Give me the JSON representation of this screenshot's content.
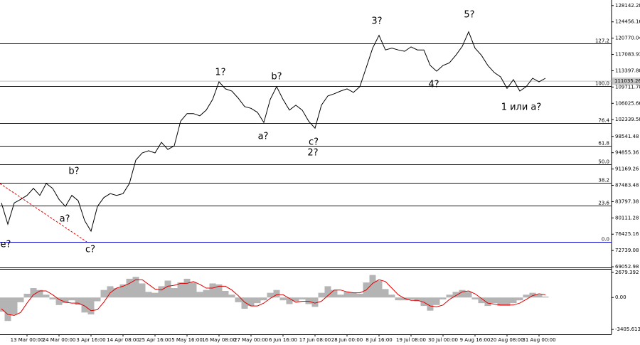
{
  "chart_data": [
    {
      "type": "line",
      "color": "#000000",
      "categories": [
        null,
        null,
        null,
        null,
        "13 Mar 00:00",
        null,
        null,
        null,
        null,
        "24 Mar 00:00",
        null,
        null,
        null,
        null,
        "3 Apr 16:00",
        null,
        null,
        null,
        null,
        "14 Apr 08:00",
        null,
        null,
        null,
        null,
        "25 Apr 16:00",
        null,
        null,
        null,
        null,
        "5 May 16:00",
        null,
        null,
        null,
        null,
        "16 May 08:00",
        null,
        null,
        null,
        null,
        "27 May 00:00",
        null,
        null,
        null,
        null,
        "6 Jun 16:00",
        null,
        null,
        null,
        null,
        "17 Jun 08:00",
        null,
        null,
        null,
        null,
        "28 Jun 00:00",
        null,
        null,
        null,
        null,
        "8 Jul 16:00",
        null,
        null,
        null,
        null,
        "19 Jul 08:00",
        null,
        null,
        null,
        null,
        "30 Jul 00:00",
        null,
        null,
        null,
        null,
        "9 Aug 16:00",
        null,
        null,
        null,
        null,
        "20 Aug 08:00",
        null,
        null,
        null,
        null,
        "31 Aug 00:00",
        null
      ],
      "values": [
        83500,
        78700,
        83500,
        84300,
        85200,
        86800,
        85200,
        87900,
        86800,
        84300,
        82700,
        85200,
        84000,
        79500,
        77100,
        82700,
        84700,
        85600,
        85200,
        85600,
        87900,
        93200,
        94800,
        95300,
        94800,
        97200,
        95600,
        96400,
        102000,
        103700,
        103700,
        103200,
        104500,
        106900,
        110900,
        109300,
        108800,
        107200,
        105300,
        104900,
        104000,
        101700,
        106900,
        109800,
        106900,
        104500,
        105600,
        104500,
        102000,
        100400,
        105600,
        107700,
        108200,
        108800,
        109300,
        108500,
        109800,
        114100,
        118500,
        121400,
        118100,
        118500,
        118100,
        117800,
        118800,
        118100,
        118100,
        114600,
        113300,
        114600,
        115200,
        116900,
        118900,
        122200,
        118500,
        116900,
        114600,
        113000,
        112000,
        109400,
        111400,
        108800,
        109800,
        111700,
        110900,
        111700
      ],
      "ylim": [
        68900,
        129400
      ],
      "yticks": [
        128142.28,
        124456.16,
        120770.04,
        117083.93,
        {
          "value": 113397.8,
          "label": "113397.80"
        },
        109711.78,
        106025.66,
        102339.58,
        98541.48,
        94855.36,
        91169.26,
        87483.48,
        83797.38,
        80111.28,
        76425.16,
        72739.08,
        69052.98
      ],
      "last_price": 111035.26,
      "levels": [
        {
          "label": "127.2",
          "value": 119585
        },
        {
          "label": "100.0",
          "value": 109931
        },
        {
          "label": "76.4",
          "value": 101565
        },
        {
          "label": "61.8",
          "value": 96415
        },
        {
          "label": "50.0",
          "value": 92232
        },
        {
          "label": "38.2",
          "value": 88048
        },
        {
          "label": "23.6",
          "value": 82898
        },
        {
          "label": "0.0",
          "value": 74694
        }
      ],
      "level_color": "#0000c8",
      "annotations": [
        {
          "text": "e?",
          "color": "#1515c8"
        },
        {
          "text": "a?",
          "color": "#1515c8"
        },
        {
          "text": "b?",
          "color": "#1515c8"
        },
        {
          "text": "c?",
          "color": "#1515c8"
        },
        {
          "text": "1?",
          "color": "#1515c8"
        },
        {
          "text": "a?",
          "color": "#c00000"
        },
        {
          "text": "b?",
          "color": "#c00000"
        },
        {
          "text": "c?",
          "color": "#c00000"
        },
        {
          "text": "2?",
          "color": "#1515c8"
        },
        {
          "text": "3?",
          "color": "#1515c8"
        },
        {
          "text": "4?",
          "color": "#1515c8"
        },
        {
          "text": "5?",
          "color": "#1515c8"
        },
        {
          "text": "1 или a?",
          "color": "#1515c8"
        }
      ]
    },
    {
      "type": "macd",
      "ylim": [
        -3925,
        3050
      ],
      "yticks": [
        2679.392,
        {
          "value": 0,
          "label": "0.00"
        },
        -3405.613
      ],
      "series": [
        {
          "type": "bar",
          "color": "#b4b4b4",
          "values": [
            -1500,
            -2500,
            -1800,
            -500,
            400,
            1000,
            800,
            300,
            -200,
            -800,
            -600,
            -300,
            -800,
            -1600,
            -1800,
            -400,
            800,
            1200,
            1000,
            1400,
            2000,
            2200,
            1500,
            600,
            500,
            1200,
            1800,
            1000,
            1600,
            2000,
            1600,
            600,
            800,
            1500,
            1400,
            700,
            300,
            -500,
            -1200,
            -900,
            -600,
            -300,
            500,
            800,
            -300,
            -700,
            -400,
            -200,
            -700,
            -1000,
            500,
            1200,
            800,
            300,
            600,
            500,
            400,
            1600,
            2400,
            1800,
            900,
            300,
            -300,
            -300,
            -200,
            -400,
            -900,
            -1400,
            -800,
            -200,
            300,
            600,
            800,
            600,
            -200,
            -600,
            -900,
            -600,
            -900,
            -900,
            -600,
            -300,
            300,
            500,
            300,
            100
          ]
        },
        {
          "type": "line",
          "color": "#e00000",
          "values": [
            -1200,
            -1800,
            -1900,
            -1600,
            -600,
            300,
            700,
            700,
            300,
            -200,
            -500,
            -600,
            -600,
            -900,
            -1400,
            -1300,
            -500,
            500,
            1000,
            1200,
            1500,
            1900,
            1900,
            1400,
            900,
            800,
            1200,
            1300,
            1500,
            1500,
            1700,
            1400,
            1000,
            1000,
            1200,
            1200,
            800,
            200,
            -500,
            -900,
            -900,
            -600,
            -100,
            300,
            300,
            -100,
            -500,
            -400,
            -400,
            -600,
            -400,
            200,
            800,
            800,
            600,
            500,
            500,
            800,
            1500,
            1900,
            1700,
            1000,
            300,
            -100,
            -300,
            -300,
            -500,
            -900,
            -1000,
            -800,
            -200,
            200,
            600,
            700,
            400,
            -100,
            -600,
            -700,
            -800,
            -800,
            -800,
            -600,
            -200,
            200,
            400,
            300
          ]
        }
      ]
    }
  ]
}
